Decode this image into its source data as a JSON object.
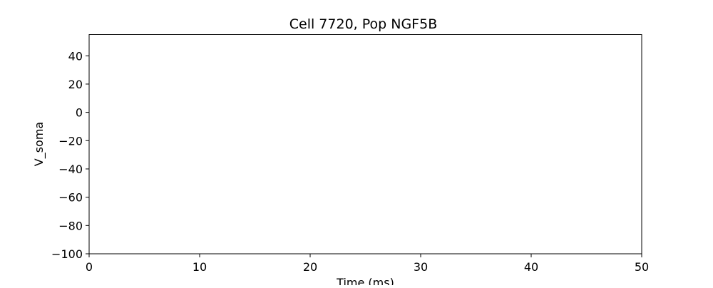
{
  "chart_data": {
    "type": "line",
    "title": "Cell 7720, Pop NGF5B",
    "xlabel": "Time (ms)",
    "ylabel": "V_soma",
    "xlim": [
      0,
      50
    ],
    "ylim": [
      -100,
      55
    ],
    "x_ticks": [
      0,
      10,
      20,
      30,
      40,
      50
    ],
    "x_tick_labels": [
      "0",
      "10",
      "20",
      "30",
      "40",
      "50"
    ],
    "y_ticks": [
      -100,
      -80,
      -60,
      -40,
      -20,
      0,
      20,
      40
    ],
    "y_tick_labels": [
      "−100",
      "−80",
      "−60",
      "−40",
      "−20",
      "0",
      "20",
      "40"
    ],
    "grid": false,
    "series": []
  }
}
